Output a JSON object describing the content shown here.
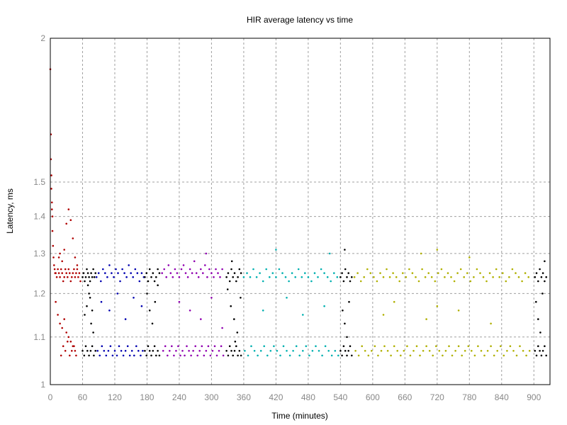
{
  "chart_data": {
    "type": "scatter",
    "title": "HIR average latency vs time",
    "xlabel": "Time (minutes)",
    "ylabel": "Latency, ms",
    "xlim": [
      0,
      930
    ],
    "ylim": [
      1,
      2
    ],
    "y_scale": "log",
    "x_ticks": [
      0,
      60,
      120,
      180,
      240,
      300,
      360,
      420,
      480,
      540,
      600,
      660,
      720,
      780,
      840,
      900
    ],
    "x_tick_labels": [
      "0",
      "60",
      "120",
      "180",
      "240",
      "300",
      "360",
      "420",
      "480",
      "540",
      "600",
      "660",
      "720",
      "780",
      "840",
      "900"
    ],
    "y_ticks": [
      1,
      1.1,
      1.2,
      1.3,
      1.4,
      1.5,
      2
    ],
    "y_tick_labels": [
      "1",
      "1.1",
      "1.2",
      "1.3",
      "1.4",
      "1.5",
      "2"
    ],
    "grid": true,
    "legend": "none",
    "series": [
      {
        "color": "#b00000",
        "x": [
          0,
          1,
          1,
          2,
          2,
          3,
          3,
          4,
          4,
          5,
          6,
          7,
          8,
          9,
          10,
          12,
          14,
          16,
          18,
          20,
          22,
          24,
          26,
          28,
          30,
          32,
          34,
          36,
          38,
          40,
          42,
          44,
          46,
          48,
          50,
          52,
          54,
          56,
          10,
          14,
          18,
          22,
          26,
          30,
          34,
          38,
          42,
          46,
          20,
          24,
          28,
          32,
          36,
          40,
          44,
          48,
          16,
          18,
          22,
          26,
          30,
          34,
          38,
          42,
          46,
          50
        ],
        "y": [
          1.88,
          1.65,
          1.57,
          1.52,
          1.48,
          1.44,
          1.42,
          1.4,
          1.36,
          1.32,
          1.29,
          1.27,
          1.26,
          1.25,
          1.25,
          1.24,
          1.26,
          1.25,
          1.24,
          1.26,
          1.25,
          1.23,
          1.24,
          1.26,
          1.25,
          1.24,
          1.26,
          1.25,
          1.23,
          1.24,
          1.25,
          1.26,
          1.24,
          1.25,
          1.26,
          1.24,
          1.25,
          1.23,
          1.18,
          1.15,
          1.13,
          1.12,
          1.14,
          1.11,
          1.1,
          1.09,
          1.08,
          1.07,
          1.06,
          1.08,
          1.07,
          1.09,
          1.06,
          1.07,
          1.08,
          1.06,
          1.29,
          1.3,
          1.28,
          1.31,
          1.38,
          1.42,
          1.39,
          1.34,
          1.29,
          1.27
        ]
      },
      {
        "color": "#000000",
        "x": [
          60,
          62,
          64,
          66,
          68,
          70,
          72,
          74,
          76,
          78,
          80,
          82,
          84,
          60,
          63,
          66,
          69,
          72,
          75,
          78,
          81,
          84,
          64,
          68,
          72,
          76,
          80,
          70,
          74,
          78
        ],
        "y": [
          1.24,
          1.25,
          1.23,
          1.24,
          1.26,
          1.25,
          1.24,
          1.23,
          1.25,
          1.24,
          1.26,
          1.24,
          1.25,
          1.07,
          1.06,
          1.08,
          1.07,
          1.06,
          1.07,
          1.08,
          1.06,
          1.07,
          1.15,
          1.17,
          1.2,
          1.13,
          1.11,
          1.22,
          1.19,
          1.16
        ]
      },
      {
        "color": "#0000b0",
        "x": [
          86,
          90,
          94,
          98,
          102,
          106,
          110,
          114,
          118,
          122,
          126,
          130,
          134,
          138,
          142,
          146,
          150,
          154,
          158,
          162,
          166,
          170,
          174,
          88,
          92,
          96,
          100,
          104,
          108,
          112,
          116,
          120,
          124,
          128,
          132,
          136,
          140,
          144,
          148,
          152,
          156,
          160,
          164,
          168,
          172,
          95,
          110,
          125,
          140,
          155,
          170
        ],
        "y": [
          1.24,
          1.25,
          1.23,
          1.26,
          1.25,
          1.24,
          1.27,
          1.25,
          1.24,
          1.26,
          1.25,
          1.23,
          1.26,
          1.25,
          1.24,
          1.27,
          1.25,
          1.24,
          1.26,
          1.25,
          1.23,
          1.25,
          1.24,
          1.07,
          1.06,
          1.08,
          1.07,
          1.06,
          1.07,
          1.08,
          1.06,
          1.07,
          1.06,
          1.08,
          1.07,
          1.06,
          1.07,
          1.08,
          1.06,
          1.07,
          1.06,
          1.08,
          1.07,
          1.06,
          1.07,
          1.18,
          1.16,
          1.2,
          1.14,
          1.19,
          1.17
        ]
      },
      {
        "color": "#000000",
        "x": [
          176,
          179,
          182,
          185,
          188,
          191,
          194,
          197,
          200,
          203,
          176,
          179,
          182,
          185,
          188,
          191,
          194,
          197,
          200,
          203,
          180,
          185,
          190,
          195,
          200
        ],
        "y": [
          1.24,
          1.25,
          1.23,
          1.26,
          1.24,
          1.25,
          1.23,
          1.24,
          1.26,
          1.25,
          1.07,
          1.06,
          1.08,
          1.07,
          1.06,
          1.07,
          1.08,
          1.06,
          1.07,
          1.06,
          1.2,
          1.16,
          1.13,
          1.18,
          1.22
        ]
      },
      {
        "color": "#9000b0",
        "x": [
          208,
          212,
          216,
          220,
          224,
          228,
          232,
          236,
          240,
          244,
          248,
          252,
          256,
          260,
          264,
          268,
          272,
          276,
          280,
          284,
          288,
          292,
          296,
          300,
          304,
          308,
          312,
          316,
          320,
          210,
          214,
          218,
          222,
          226,
          230,
          234,
          238,
          242,
          246,
          250,
          254,
          258,
          262,
          266,
          270,
          274,
          278,
          282,
          286,
          290,
          294,
          298,
          302,
          306,
          310,
          314,
          318,
          322,
          240,
          260,
          280,
          300,
          320,
          290
        ],
        "y": [
          1.25,
          1.26,
          1.24,
          1.27,
          1.25,
          1.24,
          1.26,
          1.25,
          1.24,
          1.26,
          1.27,
          1.25,
          1.24,
          1.26,
          1.25,
          1.28,
          1.25,
          1.24,
          1.26,
          1.25,
          1.27,
          1.24,
          1.26,
          1.25,
          1.24,
          1.26,
          1.25,
          1.24,
          1.26,
          1.07,
          1.08,
          1.06,
          1.07,
          1.08,
          1.06,
          1.07,
          1.08,
          1.06,
          1.07,
          1.06,
          1.08,
          1.07,
          1.06,
          1.07,
          1.08,
          1.06,
          1.07,
          1.08,
          1.06,
          1.07,
          1.08,
          1.06,
          1.07,
          1.08,
          1.06,
          1.07,
          1.08,
          1.06,
          1.18,
          1.16,
          1.14,
          1.19,
          1.12,
          1.3
        ]
      },
      {
        "color": "#000000",
        "x": [
          328,
          331,
          334,
          337,
          340,
          343,
          346,
          349,
          352,
          355,
          328,
          331,
          334,
          337,
          340,
          343,
          346,
          349,
          352,
          355,
          330,
          336,
          342,
          348,
          354,
          338,
          344
        ],
        "y": [
          1.24,
          1.25,
          1.23,
          1.26,
          1.24,
          1.25,
          1.23,
          1.24,
          1.26,
          1.25,
          1.07,
          1.06,
          1.08,
          1.07,
          1.06,
          1.07,
          1.08,
          1.06,
          1.07,
          1.06,
          1.21,
          1.17,
          1.14,
          1.11,
          1.19,
          1.28,
          1.09
        ]
      },
      {
        "color": "#00b0b0",
        "x": [
          360,
          366,
          372,
          378,
          384,
          390,
          396,
          402,
          408,
          414,
          420,
          426,
          432,
          438,
          444,
          450,
          456,
          462,
          468,
          474,
          480,
          486,
          492,
          498,
          504,
          510,
          516,
          522,
          528,
          534,
          362,
          368,
          374,
          380,
          386,
          392,
          398,
          404,
          410,
          416,
          422,
          428,
          434,
          440,
          446,
          452,
          458,
          464,
          470,
          476,
          482,
          488,
          494,
          500,
          506,
          512,
          518,
          524,
          530,
          536,
          396,
          440,
          470,
          510,
          420,
          520
        ],
        "y": [
          1.24,
          1.25,
          1.24,
          1.26,
          1.24,
          1.25,
          1.23,
          1.26,
          1.24,
          1.25,
          1.24,
          1.26,
          1.25,
          1.24,
          1.23,
          1.25,
          1.24,
          1.26,
          1.24,
          1.25,
          1.24,
          1.23,
          1.25,
          1.24,
          1.26,
          1.25,
          1.24,
          1.23,
          1.25,
          1.24,
          1.07,
          1.06,
          1.08,
          1.07,
          1.06,
          1.07,
          1.08,
          1.06,
          1.07,
          1.08,
          1.07,
          1.06,
          1.08,
          1.07,
          1.06,
          1.07,
          1.08,
          1.06,
          1.07,
          1.08,
          1.06,
          1.07,
          1.08,
          1.07,
          1.06,
          1.08,
          1.07,
          1.06,
          1.07,
          1.06,
          1.16,
          1.19,
          1.15,
          1.17,
          1.31,
          1.3
        ]
      },
      {
        "color": "#000000",
        "x": [
          540,
          543,
          546,
          549,
          552,
          555,
          558,
          561,
          540,
          543,
          546,
          549,
          552,
          555,
          558,
          561,
          544,
          548,
          552,
          556,
          548
        ],
        "y": [
          1.24,
          1.25,
          1.23,
          1.26,
          1.24,
          1.25,
          1.23,
          1.24,
          1.07,
          1.06,
          1.08,
          1.07,
          1.06,
          1.07,
          1.08,
          1.06,
          1.16,
          1.13,
          1.1,
          1.18,
          1.31
        ]
      },
      {
        "color": "#b0b000",
        "x": [
          566,
          572,
          578,
          584,
          590,
          596,
          602,
          608,
          614,
          620,
          626,
          632,
          638,
          644,
          650,
          656,
          662,
          668,
          674,
          680,
          686,
          692,
          698,
          704,
          710,
          716,
          722,
          728,
          734,
          740,
          746,
          752,
          758,
          764,
          770,
          776,
          782,
          788,
          794,
          800,
          806,
          812,
          818,
          824,
          830,
          836,
          842,
          848,
          854,
          860,
          866,
          872,
          878,
          884,
          890,
          568,
          574,
          580,
          586,
          592,
          598,
          604,
          610,
          616,
          622,
          628,
          634,
          640,
          646,
          652,
          658,
          664,
          670,
          676,
          682,
          688,
          694,
          700,
          706,
          712,
          718,
          724,
          730,
          736,
          742,
          748,
          754,
          760,
          766,
          772,
          778,
          784,
          790,
          796,
          802,
          808,
          814,
          820,
          826,
          832,
          838,
          844,
          850,
          856,
          862,
          868,
          874,
          880,
          886,
          892,
          620,
          640,
          700,
          720,
          760,
          820,
          690,
          720,
          780
        ],
        "y": [
          1.24,
          1.25,
          1.23,
          1.24,
          1.26,
          1.25,
          1.24,
          1.23,
          1.25,
          1.24,
          1.26,
          1.24,
          1.25,
          1.24,
          1.23,
          1.25,
          1.24,
          1.26,
          1.25,
          1.24,
          1.23,
          1.26,
          1.24,
          1.25,
          1.24,
          1.23,
          1.25,
          1.26,
          1.24,
          1.25,
          1.24,
          1.23,
          1.25,
          1.26,
          1.24,
          1.25,
          1.23,
          1.24,
          1.26,
          1.25,
          1.24,
          1.23,
          1.25,
          1.24,
          1.26,
          1.24,
          1.25,
          1.23,
          1.24,
          1.26,
          1.25,
          1.24,
          1.23,
          1.25,
          1.24,
          1.07,
          1.06,
          1.08,
          1.07,
          1.06,
          1.07,
          1.08,
          1.06,
          1.07,
          1.08,
          1.07,
          1.06,
          1.08,
          1.07,
          1.06,
          1.07,
          1.08,
          1.06,
          1.07,
          1.08,
          1.06,
          1.07,
          1.08,
          1.07,
          1.06,
          1.08,
          1.07,
          1.06,
          1.07,
          1.08,
          1.06,
          1.07,
          1.08,
          1.06,
          1.07,
          1.08,
          1.07,
          1.06,
          1.08,
          1.07,
          1.06,
          1.07,
          1.08,
          1.06,
          1.07,
          1.08,
          1.06,
          1.07,
          1.08,
          1.07,
          1.06,
          1.08,
          1.07,
          1.06,
          1.07,
          1.15,
          1.18,
          1.14,
          1.17,
          1.16,
          1.13,
          1.3,
          1.31,
          1.29
        ]
      },
      {
        "color": "#000000",
        "x": [
          902,
          905,
          908,
          911,
          914,
          917,
          920,
          923,
          902,
          905,
          908,
          911,
          914,
          917,
          920,
          923,
          904,
          908,
          912,
          916,
          920
        ],
        "y": [
          1.24,
          1.25,
          1.23,
          1.26,
          1.24,
          1.25,
          1.23,
          1.24,
          1.07,
          1.06,
          1.08,
          1.07,
          1.06,
          1.07,
          1.08,
          1.06,
          1.18,
          1.14,
          1.11,
          1.2,
          1.28
        ]
      }
    ]
  },
  "colors": {
    "grid": "#a0a0a0",
    "frame": "#000000",
    "tick_text": "#888888"
  }
}
